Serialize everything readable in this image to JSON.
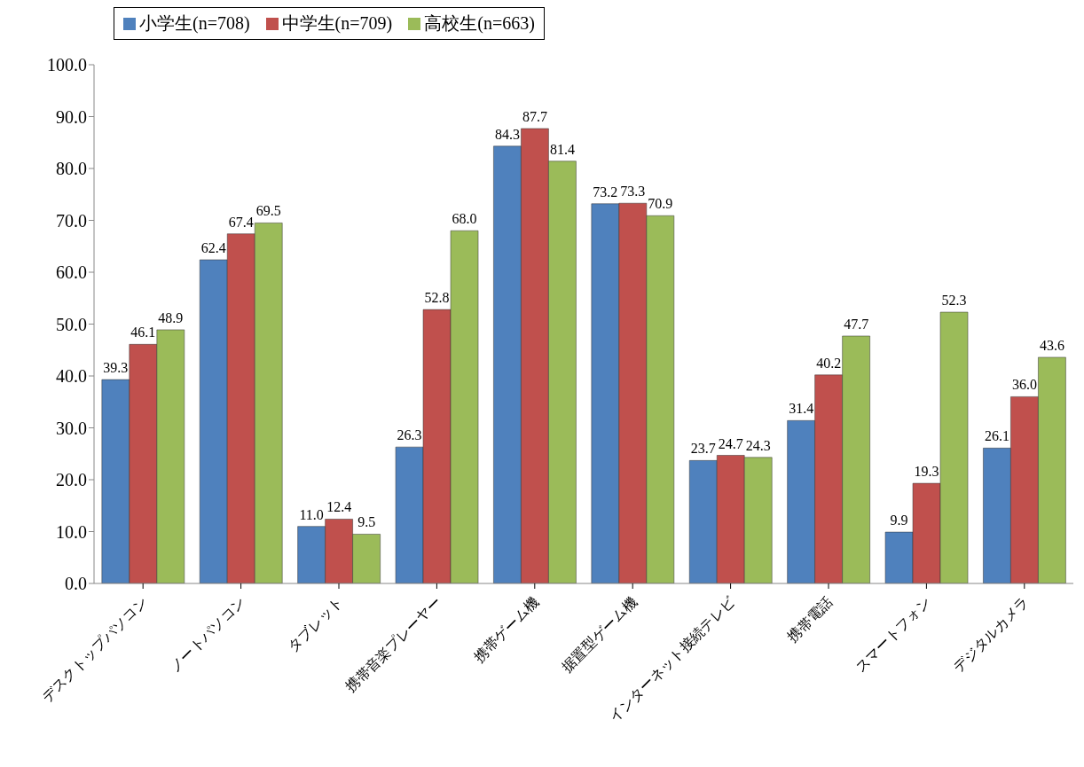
{
  "chart_data": {
    "type": "bar",
    "categories": [
      "デスクトップパソコン",
      "ノートパソコン",
      "タブレット",
      "携帯音楽プレーヤー",
      "携帯ゲーム機",
      "据置型ゲーム機",
      "インターネット接続テレビ",
      "携帯電話",
      "スマートフォン",
      "デジタルカメラ"
    ],
    "series": [
      {
        "name": "小学生(n=708)",
        "color": "#4f81bd",
        "values": [
          39.3,
          62.4,
          11.0,
          26.3,
          84.3,
          73.2,
          23.7,
          31.4,
          9.9,
          26.1
        ],
        "value_labels": [
          "39.3",
          "62.4",
          "11.0",
          "26.3",
          "84.3",
          "73.2",
          "23.7",
          "31.4",
          "9.9",
          "26.1"
        ]
      },
      {
        "name": "中学生(n=709)",
        "color": "#c0504d",
        "values": [
          46.1,
          67.4,
          12.4,
          52.8,
          87.7,
          73.3,
          24.7,
          40.2,
          19.3,
          36.0
        ],
        "value_labels": [
          "46.1",
          "67.4",
          "12.4",
          "52.8",
          "87.7",
          "73.3",
          "24.7",
          "40.2",
          "19.3",
          "36.0"
        ]
      },
      {
        "name": "高校生(n=663)",
        "color": "#9bbb59",
        "values": [
          48.9,
          69.5,
          9.5,
          68.0,
          81.4,
          70.9,
          24.3,
          47.7,
          52.3,
          43.6
        ],
        "value_labels": [
          "48.9",
          "69.5",
          "9.5",
          "68.0",
          "81.4",
          "70.9",
          "24.3",
          "47.7",
          "52.3",
          "43.6"
        ]
      }
    ],
    "ylim": [
      0,
      100
    ],
    "yticks": [
      {
        "value": 0,
        "label": "0.0"
      },
      {
        "value": 10,
        "label": "10.0"
      },
      {
        "value": 20,
        "label": "20.0"
      },
      {
        "value": 30,
        "label": "30.0"
      },
      {
        "value": 40,
        "label": "40.0"
      },
      {
        "value": 50,
        "label": "50.0"
      },
      {
        "value": 60,
        "label": "60.0"
      },
      {
        "value": 70,
        "label": "70.0"
      },
      {
        "value": 80,
        "label": "80.0"
      },
      {
        "value": 90,
        "label": "90.0"
      },
      {
        "value": 100,
        "label": "100.0"
      }
    ],
    "grid": false,
    "legend": "top"
  }
}
